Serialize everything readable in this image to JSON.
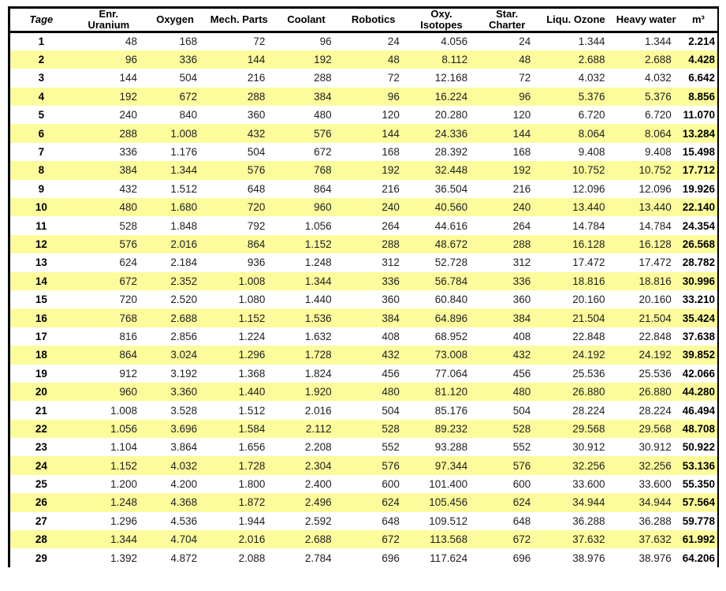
{
  "table": {
    "stripe_color": "#FCFC9C",
    "border_color": "#000000",
    "columns": [
      {
        "id": "tage",
        "label": "Tage",
        "italic": true
      },
      {
        "id": "enr_uranium",
        "label": "Enr.\nUranium"
      },
      {
        "id": "oxygen",
        "label": "Oxygen"
      },
      {
        "id": "mech_parts",
        "label": "Mech. Parts"
      },
      {
        "id": "coolant",
        "label": "Coolant"
      },
      {
        "id": "robotics",
        "label": "Robotics"
      },
      {
        "id": "oxy_isotopes",
        "label": "Oxy.\nIsotopes"
      },
      {
        "id": "star_charter",
        "label": "Star.\nCharter"
      },
      {
        "id": "liqu_ozone",
        "label": "Liqu. Ozone"
      },
      {
        "id": "heavy_water",
        "label": "Heavy water"
      },
      {
        "id": "m3",
        "label": "m³",
        "bold_values": true
      }
    ],
    "rows": [
      [
        "1",
        "48",
        "168",
        "72",
        "96",
        "24",
        "4.056",
        "24",
        "1.344",
        "1.344",
        "2.214"
      ],
      [
        "2",
        "96",
        "336",
        "144",
        "192",
        "48",
        "8.112",
        "48",
        "2.688",
        "2.688",
        "4.428"
      ],
      [
        "3",
        "144",
        "504",
        "216",
        "288",
        "72",
        "12.168",
        "72",
        "4.032",
        "4.032",
        "6.642"
      ],
      [
        "4",
        "192",
        "672",
        "288",
        "384",
        "96",
        "16.224",
        "96",
        "5.376",
        "5.376",
        "8.856"
      ],
      [
        "5",
        "240",
        "840",
        "360",
        "480",
        "120",
        "20.280",
        "120",
        "6.720",
        "6.720",
        "11.070"
      ],
      [
        "6",
        "288",
        "1.008",
        "432",
        "576",
        "144",
        "24.336",
        "144",
        "8.064",
        "8.064",
        "13.284"
      ],
      [
        "7",
        "336",
        "1.176",
        "504",
        "672",
        "168",
        "28.392",
        "168",
        "9.408",
        "9.408",
        "15.498"
      ],
      [
        "8",
        "384",
        "1.344",
        "576",
        "768",
        "192",
        "32.448",
        "192",
        "10.752",
        "10.752",
        "17.712"
      ],
      [
        "9",
        "432",
        "1.512",
        "648",
        "864",
        "216",
        "36.504",
        "216",
        "12.096",
        "12.096",
        "19.926"
      ],
      [
        "10",
        "480",
        "1.680",
        "720",
        "960",
        "240",
        "40.560",
        "240",
        "13.440",
        "13.440",
        "22.140"
      ],
      [
        "11",
        "528",
        "1.848",
        "792",
        "1.056",
        "264",
        "44.616",
        "264",
        "14.784",
        "14.784",
        "24.354"
      ],
      [
        "12",
        "576",
        "2.016",
        "864",
        "1.152",
        "288",
        "48.672",
        "288",
        "16.128",
        "16.128",
        "26.568"
      ],
      [
        "13",
        "624",
        "2.184",
        "936",
        "1.248",
        "312",
        "52.728",
        "312",
        "17.472",
        "17.472",
        "28.782"
      ],
      [
        "14",
        "672",
        "2.352",
        "1.008",
        "1.344",
        "336",
        "56.784",
        "336",
        "18.816",
        "18.816",
        "30.996"
      ],
      [
        "15",
        "720",
        "2.520",
        "1.080",
        "1.440",
        "360",
        "60.840",
        "360",
        "20.160",
        "20.160",
        "33.210"
      ],
      [
        "16",
        "768",
        "2.688",
        "1.152",
        "1.536",
        "384",
        "64.896",
        "384",
        "21.504",
        "21.504",
        "35.424"
      ],
      [
        "17",
        "816",
        "2.856",
        "1.224",
        "1.632",
        "408",
        "68.952",
        "408",
        "22.848",
        "22.848",
        "37.638"
      ],
      [
        "18",
        "864",
        "3.024",
        "1.296",
        "1.728",
        "432",
        "73.008",
        "432",
        "24.192",
        "24.192",
        "39.852"
      ],
      [
        "19",
        "912",
        "3.192",
        "1.368",
        "1.824",
        "456",
        "77.064",
        "456",
        "25.536",
        "25.536",
        "42.066"
      ],
      [
        "20",
        "960",
        "3.360",
        "1.440",
        "1.920",
        "480",
        "81.120",
        "480",
        "26.880",
        "26.880",
        "44.280"
      ],
      [
        "21",
        "1.008",
        "3.528",
        "1.512",
        "2.016",
        "504",
        "85.176",
        "504",
        "28.224",
        "28.224",
        "46.494"
      ],
      [
        "22",
        "1.056",
        "3.696",
        "1.584",
        "2.112",
        "528",
        "89.232",
        "528",
        "29.568",
        "29.568",
        "48.708"
      ],
      [
        "23",
        "1.104",
        "3.864",
        "1.656",
        "2.208",
        "552",
        "93.288",
        "552",
        "30.912",
        "30.912",
        "50.922"
      ],
      [
        "24",
        "1.152",
        "4.032",
        "1.728",
        "2.304",
        "576",
        "97.344",
        "576",
        "32.256",
        "32.256",
        "53.136"
      ],
      [
        "25",
        "1.200",
        "4.200",
        "1.800",
        "2.400",
        "600",
        "101.400",
        "600",
        "33.600",
        "33.600",
        "55.350"
      ],
      [
        "26",
        "1.248",
        "4.368",
        "1.872",
        "2.496",
        "624",
        "105.456",
        "624",
        "34.944",
        "34.944",
        "57.564"
      ],
      [
        "27",
        "1.296",
        "4.536",
        "1.944",
        "2.592",
        "648",
        "109.512",
        "648",
        "36.288",
        "36.288",
        "59.778"
      ],
      [
        "28",
        "1.344",
        "4.704",
        "2.016",
        "2.688",
        "672",
        "113.568",
        "672",
        "37.632",
        "37.632",
        "61.992"
      ],
      [
        "29",
        "1.392",
        "4.872",
        "2.088",
        "2.784",
        "696",
        "117.624",
        "696",
        "38.976",
        "38.976",
        "64.206"
      ]
    ]
  }
}
